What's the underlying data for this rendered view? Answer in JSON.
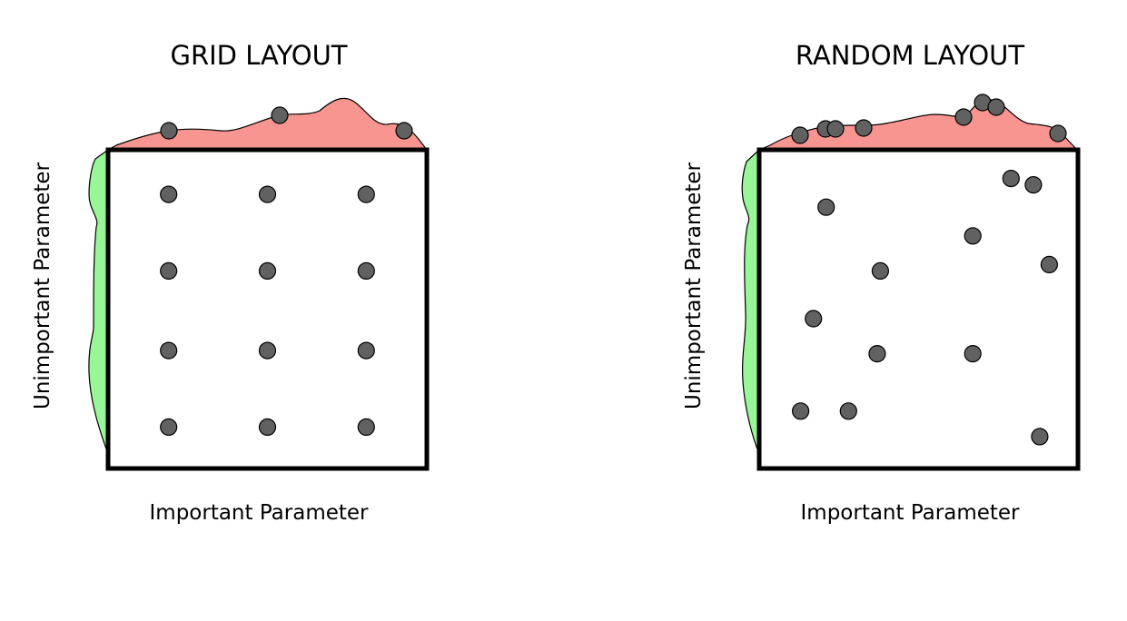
{
  "colors": {
    "important_distribution": "#f99590",
    "unimportant_distribution": "#98f598",
    "point": "#616161",
    "frame": "#000000"
  },
  "panels": [
    {
      "title": "GRID LAYOUT",
      "xlabel": "Important Parameter",
      "ylabel": "Unimportant Parameter",
      "points": [
        [
          0.19,
          0.86
        ],
        [
          0.5,
          0.86
        ],
        [
          0.81,
          0.86
        ],
        [
          0.19,
          0.62
        ],
        [
          0.5,
          0.62
        ],
        [
          0.81,
          0.62
        ],
        [
          0.19,
          0.37
        ],
        [
          0.5,
          0.37
        ],
        [
          0.81,
          0.37
        ],
        [
          0.19,
          0.13
        ],
        [
          0.5,
          0.13
        ],
        [
          0.81,
          0.13
        ]
      ]
    },
    {
      "title": "RANDOM LAYOUT",
      "xlabel": "Important Parameter",
      "ylabel": "Unimportant Parameter",
      "points": [
        [
          0.86,
          0.89
        ],
        [
          0.21,
          0.82
        ],
        [
          0.67,
          0.73
        ],
        [
          0.91,
          0.64
        ],
        [
          0.38,
          0.62
        ],
        [
          0.17,
          0.47
        ],
        [
          0.37,
          0.36
        ],
        [
          0.67,
          0.36
        ],
        [
          0.28,
          0.18
        ],
        [
          0.88,
          0.1
        ],
        [
          0.13,
          0.18
        ],
        [
          0.79,
          0.91
        ]
      ]
    }
  ]
}
